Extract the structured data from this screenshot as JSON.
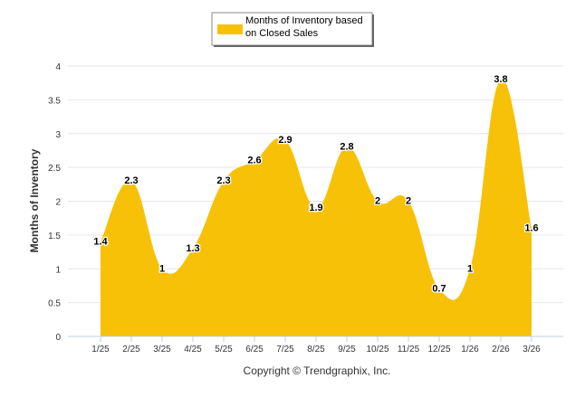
{
  "chart_data": {
    "type": "area",
    "categories": [
      "1/25",
      "2/25",
      "3/25",
      "4/25",
      "5/25",
      "6/25",
      "7/25",
      "8/25",
      "9/25",
      "10/25",
      "11/25",
      "12/25",
      "1/26",
      "2/26",
      "3/26"
    ],
    "series": [
      {
        "name": "Months of Inventory based on Closed Sales",
        "values": [
          1.4,
          2.3,
          1,
          1.3,
          2.3,
          2.6,
          2.9,
          1.9,
          2.8,
          2,
          2,
          0.7,
          1,
          3.8,
          1.6
        ],
        "data_labels": [
          "1.4",
          "2.3",
          "1",
          "1.3",
          "2.3",
          "2.6",
          "2.9",
          "1.9",
          "2.8",
          "2",
          "2",
          "0.7",
          "1",
          "3.8",
          "1.6"
        ],
        "color": "#F7C107"
      }
    ],
    "legend": {
      "lines": [
        "Months of Inventory based",
        "on Closed Sales"
      ],
      "placement": "top-center",
      "swatch_color": "#F7C107"
    },
    "ylabel": "Months of Inventory",
    "xlabel": "",
    "ylim": [
      0,
      4
    ],
    "yticks": [
      "0",
      "0.5",
      "1",
      "1.5",
      "2",
      "2.5",
      "3",
      "3.5",
      "4"
    ],
    "ytick_values": [
      0,
      0.5,
      1,
      1.5,
      2,
      2.5,
      3,
      3.5,
      4
    ],
    "grid": true,
    "footer": "Copyright © Trendgraphix, Inc."
  },
  "colors": {
    "area_fill": "#F7C107",
    "grid": "#E6E6E6",
    "axis": "#C0D0E0",
    "text": "#333333"
  }
}
